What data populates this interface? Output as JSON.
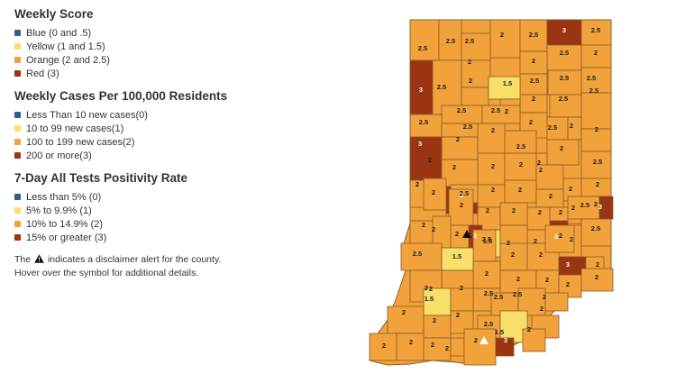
{
  "legend_sections": [
    {
      "title": "Weekly Score",
      "items": [
        {
          "label": "Blue (0 and .5)",
          "color": "#2e5e8a"
        },
        {
          "label": "Yellow (1 and 1.5)",
          "color": "#f7df6a"
        },
        {
          "label": "Orange (2 and 2.5)",
          "color": "#f1a23a"
        },
        {
          "label": "Red (3)",
          "color": "#9a3412"
        }
      ]
    },
    {
      "title": "Weekly Cases Per 100,000 Residents",
      "items": [
        {
          "label": "Less Than 10 new cases(0)",
          "color": "#2e5e8a"
        },
        {
          "label": "10 to 99 new cases(1)",
          "color": "#f7df6a"
        },
        {
          "label": "100 to 199 new cases(2)",
          "color": "#f1a23a"
        },
        {
          "label": "200 or more(3)",
          "color": "#9a3412"
        }
      ]
    },
    {
      "title": "7-Day All Tests Positivity Rate",
      "items": [
        {
          "label": "Less than 5% (0)",
          "color": "#2e5e8a"
        },
        {
          "label": "5% to 9.9% (1)",
          "color": "#f7df6a"
        },
        {
          "label": "10% to 14.9% (2)",
          "color": "#f1a23a"
        },
        {
          "label": "15% or greater (3)",
          "color": "#9a3412"
        }
      ]
    }
  ],
  "note": {
    "before": "The",
    "after": "indicates a disclaimer alert for the county. Hover over the symbol for additional details."
  },
  "colors": {
    "orange": "#f1a23a",
    "yellow": "#f7df6a",
    "red": "#9a3412",
    "border": "#8a5a2a",
    "page_background": "#ffffff"
  },
  "map": {
    "counties": [
      {
        "score": "2.5",
        "tier": "orange"
      },
      {
        "score": "2.5",
        "tier": "orange"
      },
      {
        "score": "2",
        "tier": "orange"
      },
      {
        "score": "2.5",
        "tier": "orange"
      },
      {
        "score": "3",
        "tier": "red"
      },
      {
        "score": "2.5",
        "tier": "orange"
      },
      {
        "score": "2.5",
        "tier": "orange"
      },
      {
        "score": "2.5",
        "tier": "orange"
      },
      {
        "score": "2",
        "tier": "orange"
      },
      {
        "score": "2",
        "tier": "orange"
      },
      {
        "score": "2.5",
        "tier": "orange"
      },
      {
        "score": "2.5",
        "tier": "orange"
      },
      {
        "score": "2",
        "tier": "orange"
      },
      {
        "score": "2.5",
        "tier": "orange"
      },
      {
        "score": "3",
        "tier": "red"
      },
      {
        "score": "2.5",
        "tier": "orange"
      },
      {
        "score": "2",
        "tier": "orange"
      },
      {
        "score": "1.5",
        "tier": "yellow"
      },
      {
        "score": "2",
        "tier": "orange"
      },
      {
        "score": "2.5",
        "tier": "orange"
      },
      {
        "score": "2.5",
        "tier": "orange"
      },
      {
        "score": "2",
        "tier": "orange"
      },
      {
        "score": "2",
        "tier": "orange"
      },
      {
        "score": "2.5",
        "tier": "orange"
      },
      {
        "score": "2.5",
        "tier": "orange"
      },
      {
        "score": "2.5",
        "tier": "orange"
      },
      {
        "score": "2",
        "tier": "orange"
      },
      {
        "score": "2",
        "tier": "orange"
      },
      {
        "score": "2.5",
        "tier": "orange"
      },
      {
        "score": "2.5",
        "tier": "orange"
      },
      {
        "score": "2",
        "tier": "orange"
      },
      {
        "score": "2.5",
        "tier": "orange"
      },
      {
        "score": "2",
        "tier": "orange"
      },
      {
        "score": "2",
        "tier": "orange"
      },
      {
        "score": "2",
        "tier": "orange"
      },
      {
        "score": "2",
        "tier": "orange"
      },
      {
        "score": "3",
        "tier": "red"
      },
      {
        "score": "2",
        "tier": "orange"
      },
      {
        "score": "2",
        "tier": "orange"
      },
      {
        "score": "2",
        "tier": "orange"
      },
      {
        "score": "2.5",
        "tier": "orange"
      },
      {
        "score": "2",
        "tier": "orange"
      },
      {
        "score": "2",
        "tier": "orange"
      },
      {
        "score": "2",
        "tier": "orange"
      },
      {
        "score": "3",
        "tier": "red"
      },
      {
        "score": "2",
        "tier": "orange"
      },
      {
        "score": "2",
        "tier": "orange"
      },
      {
        "score": "2",
        "tier": "orange"
      },
      {
        "score": "2",
        "tier": "orange"
      },
      {
        "score": "2",
        "tier": "orange"
      },
      {
        "score": "2",
        "tier": "orange"
      },
      {
        "score": "2",
        "tier": "orange"
      },
      {
        "score": "2.5",
        "tier": "orange"
      },
      {
        "score": "2",
        "tier": "orange"
      },
      {
        "score": "2",
        "tier": "orange"
      },
      {
        "score": "2",
        "tier": "orange"
      },
      {
        "score": "2",
        "tier": "orange"
      },
      {
        "score": "2",
        "tier": "orange"
      },
      {
        "score": "2",
        "tier": "orange"
      },
      {
        "score": "1.5",
        "tier": "yellow"
      },
      {
        "score": "2",
        "tier": "orange"
      },
      {
        "score": "2",
        "tier": "orange"
      },
      {
        "score": "2.5",
        "tier": "orange"
      },
      {
        "score": "3",
        "tier": "red"
      },
      {
        "score": "3",
        "tier": "red"
      },
      {
        "score": "2",
        "tier": "orange"
      },
      {
        "score": "2",
        "tier": "orange"
      },
      {
        "score": "3",
        "tier": "red"
      },
      {
        "score": "2",
        "tier": "orange"
      },
      {
        "score": "2",
        "tier": "orange"
      },
      {
        "score": "2",
        "tier": "orange"
      },
      {
        "score": "2.5",
        "tier": "orange"
      },
      {
        "score": "2.5",
        "tier": "orange"
      },
      {
        "score": "2.5",
        "tier": "orange"
      },
      {
        "score": "1.5",
        "tier": "yellow"
      },
      {
        "score": "2",
        "tier": "orange"
      },
      {
        "score": "2",
        "tier": "orange"
      },
      {
        "score": "3",
        "tier": "red"
      },
      {
        "score": "2",
        "tier": "orange"
      },
      {
        "score": "2",
        "tier": "orange"
      },
      {
        "score": "2",
        "tier": "orange"
      },
      {
        "score": "2.5",
        "tier": "orange"
      },
      {
        "score": "2",
        "tier": "orange"
      },
      {
        "score": "2",
        "tier": "orange"
      },
      {
        "score": "2",
        "tier": "orange"
      },
      {
        "score": "2",
        "tier": "orange"
      },
      {
        "score": "1.5",
        "tier": "yellow"
      },
      {
        "score": "2",
        "tier": "orange"
      },
      {
        "score": "2.5",
        "tier": "orange"
      },
      {
        "score": "2.5",
        "tier": "orange"
      },
      {
        "score": "2",
        "tier": "orange"
      },
      {
        "score": "2",
        "tier": "orange"
      },
      {
        "score": "2",
        "tier": "orange"
      },
      {
        "score": "2",
        "tier": "orange"
      },
      {
        "score": "2",
        "tier": "orange"
      },
      {
        "score": "2.5",
        "tier": "orange"
      },
      {
        "score": "1.5",
        "tier": "yellow"
      },
      {
        "score": "2",
        "tier": "orange"
      },
      {
        "score": "2",
        "tier": "orange"
      },
      {
        "score": "2",
        "tier": "orange"
      },
      {
        "score": "2",
        "tier": "orange"
      },
      {
        "score": "2",
        "tier": "orange"
      },
      {
        "score": "2",
        "tier": "orange"
      },
      {
        "score": "3",
        "tier": "red"
      },
      {
        "score": "2",
        "tier": "orange"
      }
    ]
  }
}
